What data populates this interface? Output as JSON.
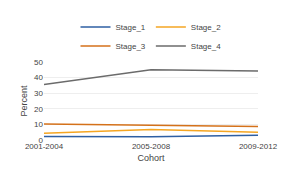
{
  "chart_data": {
    "type": "line",
    "categories": [
      "2001-2004",
      "2005-2008",
      "2009-2012"
    ],
    "series": [
      {
        "name": "Stage_1",
        "color": "#2e5fa3",
        "values": [
          2.3,
          2.1,
          3.0
        ]
      },
      {
        "name": "Stage_2",
        "color": "#f5a623",
        "values": [
          4.3,
          6.8,
          5.0
        ]
      },
      {
        "name": "Stage_3",
        "color": "#d4711a",
        "values": [
          10.3,
          9.3,
          8.7
        ]
      },
      {
        "name": "Stage_4",
        "color": "#6b6b6b",
        "values": [
          35.5,
          45.0,
          44.3
        ]
      }
    ],
    "xlabel": "Cohort",
    "ylabel": "Percent",
    "ylim": [
      0,
      50
    ],
    "yticks": [
      0,
      10,
      20,
      30,
      40,
      50
    ],
    "grid": true,
    "legend": "top"
  }
}
